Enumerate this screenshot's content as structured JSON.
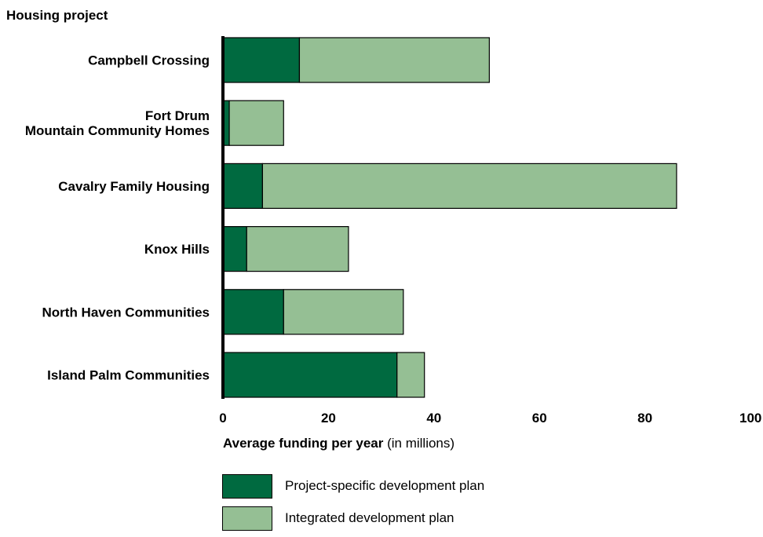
{
  "colors": {
    "project_specific": "#006a40",
    "integrated": "#95bf94",
    "axis": "#000000"
  },
  "chart_data": {
    "type": "bar",
    "orientation": "horizontal",
    "stacked": true,
    "ylabel": "Housing project",
    "xlabel_bold": "Average funding per year",
    "xlabel_rest": " (in millions)",
    "categories": [
      [
        "Campbell Crossing"
      ],
      [
        "Fort Drum",
        "Mountain Community Homes"
      ],
      [
        "Cavalry Family Housing"
      ],
      [
        "Knox Hills"
      ],
      [
        "North Haven Communities"
      ],
      [
        "Island Palm Communities"
      ]
    ],
    "series": [
      {
        "name": "Project-specific development plan",
        "values": [
          14.5,
          1.2,
          7.5,
          4.5,
          11.5,
          33.0
        ]
      },
      {
        "name": "Integrated development plan",
        "values": [
          36.0,
          10.3,
          78.5,
          19.3,
          22.7,
          5.2
        ]
      }
    ],
    "xlim": [
      0,
      100
    ],
    "xticks": [
      0,
      20,
      40,
      60,
      80,
      100
    ],
    "grid": false,
    "legend_position": "bottom-left"
  }
}
